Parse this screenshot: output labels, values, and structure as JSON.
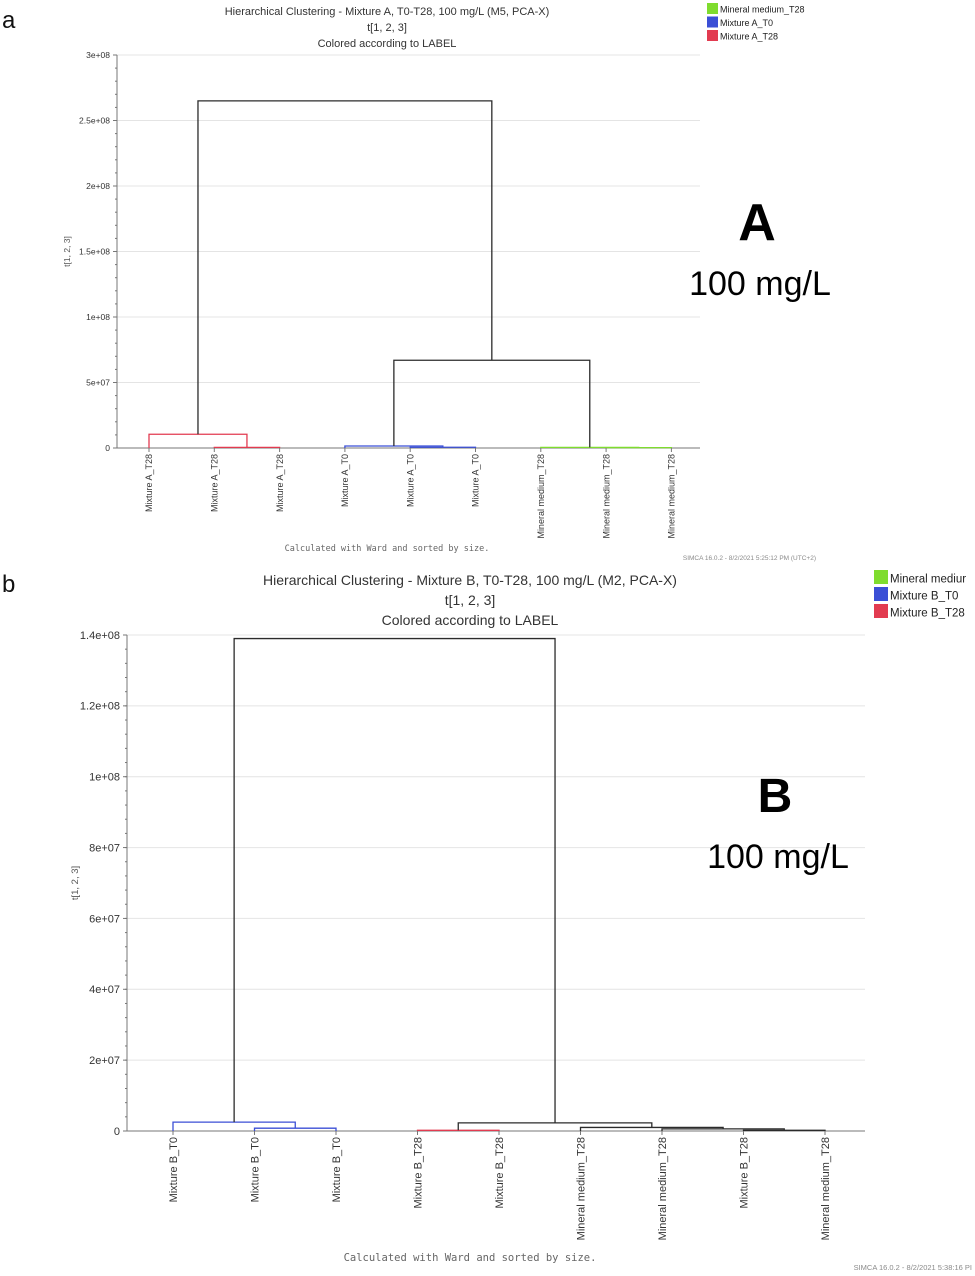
{
  "panels": [
    {
      "panel_label": "a",
      "big_letter": "A",
      "concentration": "100 mg/L",
      "ylabel": "t[1, 2, 3]",
      "footnote": "Calculated with Ward and sorted by size.",
      "stamp": "SIMCA 16.0.2 - 8/2/2021 5:25:12 PM (UTC+2)",
      "colors": {
        "Mineral medium_T28": "#7fdc2e",
        "Mixture A_T0": "#3b4fd6",
        "Mixture A_T28": "#e23b50",
        "merge": "#2b2b2b"
      },
      "legend": [
        {
          "label": "Mineral medium_T28",
          "color": "#7fdc2e"
        },
        {
          "label": "Mixture A_T0",
          "color": "#3b4fd6"
        },
        {
          "label": "Mixture A_T28",
          "color": "#e23b50"
        }
      ],
      "chart_data": {
        "type": "dendrogram",
        "title": "Hierarchical Clustering - Mixture A, T0-T28, 100 mg/L (M5, PCA-X)",
        "subtitle": "t[1, 2, 3]",
        "subtitle2": "Colored according to LABEL",
        "ylim": [
          0,
          300000000
        ],
        "yticks": [
          0,
          50000000,
          100000000,
          150000000,
          200000000,
          250000000,
          300000000
        ],
        "ytick_labels": [
          "0",
          "5e+07",
          "1e+08",
          "1.5e+08",
          "2e+08",
          "2.5e+08",
          "3e+08"
        ],
        "grid": true,
        "leaves": [
          "Mixture A_T28",
          "Mixture A_T28",
          "Mixture A_T28",
          "Mixture A_T0",
          "Mixture A_T0",
          "Mixture A_T0",
          "Mineral medium_T28",
          "Mineral medium_T28",
          "Mineral medium_T28"
        ],
        "merges": [
          {
            "left": 1,
            "right": 2,
            "height": 500000,
            "color": "Mixture A_T28"
          },
          {
            "left": 0,
            "right": 9,
            "height": 10500000,
            "color": "Mixture A_T28"
          },
          {
            "left": 4,
            "right": 5,
            "height": 600000,
            "color": "Mixture A_T0"
          },
          {
            "left": 3,
            "right": 11,
            "height": 1500000,
            "color": "Mixture A_T0"
          },
          {
            "left": 7,
            "right": 8,
            "height": 300000,
            "color": "Mineral medium_T28"
          },
          {
            "left": 6,
            "right": 13,
            "height": 500000,
            "color": "Mineral medium_T28"
          },
          {
            "left": 12,
            "right": 14,
            "height": 67000000,
            "color": "merge"
          },
          {
            "left": 10,
            "right": 15,
            "height": 265000000,
            "color": "merge"
          }
        ]
      }
    },
    {
      "panel_label": "b",
      "big_letter": "B",
      "concentration": "100 mg/L",
      "ylabel": "t[1, 2, 3]",
      "footnote": "Calculated with Ward and sorted by size.",
      "stamp": "SIMCA 16.0.2 - 8/2/2021 5:38:16 PI",
      "colors": {
        "Mineral medium_T28": "#7fdc2e",
        "Mixture B_T0": "#3b4fd6",
        "Mixture B_T28": "#e23b50",
        "merge": "#2b2b2b"
      },
      "legend": [
        {
          "label": "Mineral mediur",
          "color": "#7fdc2e"
        },
        {
          "label": "Mixture B_T0",
          "color": "#3b4fd6"
        },
        {
          "label": "Mixture B_T28",
          "color": "#e23b50"
        }
      ],
      "chart_data": {
        "type": "dendrogram",
        "title": "Hierarchical Clustering - Mixture B, T0-T28, 100 mg/L (M2, PCA-X)",
        "subtitle": "t[1, 2, 3]",
        "subtitle2": "Colored according to LABEL",
        "ylim": [
          0,
          140000000
        ],
        "yticks": [
          0,
          20000000,
          40000000,
          60000000,
          80000000,
          100000000,
          120000000,
          140000000
        ],
        "ytick_labels": [
          "0",
          "2e+07",
          "4e+07",
          "6e+07",
          "8e+07",
          "1e+08",
          "1.2e+08",
          "1.4e+08"
        ],
        "grid": true,
        "leaves": [
          "Mixture B_T0",
          "Mixture B_T0",
          "Mixture B_T0",
          "Mixture B_T28",
          "Mixture B_T28",
          "Mineral medium_T28",
          "Mineral medium_T28",
          "Mixture B_T28",
          "Mineral medium_T28"
        ],
        "merges": [
          {
            "left": 1,
            "right": 2,
            "height": 800000,
            "color": "Mixture B_T0"
          },
          {
            "left": 0,
            "right": 9,
            "height": 2500000,
            "color": "Mixture B_T0"
          },
          {
            "left": 3,
            "right": 4,
            "height": 200000,
            "color": "Mixture B_T28"
          },
          {
            "left": 7,
            "right": 8,
            "height": 200000,
            "color": "merge"
          },
          {
            "left": 6,
            "right": 12,
            "height": 600000,
            "color": "merge"
          },
          {
            "left": 5,
            "right": 13,
            "height": 1000000,
            "color": "merge"
          },
          {
            "left": 11,
            "right": 14,
            "height": 2300000,
            "color": "merge"
          },
          {
            "left": 10,
            "right": 15,
            "height": 139000000,
            "color": "merge"
          }
        ]
      }
    }
  ]
}
